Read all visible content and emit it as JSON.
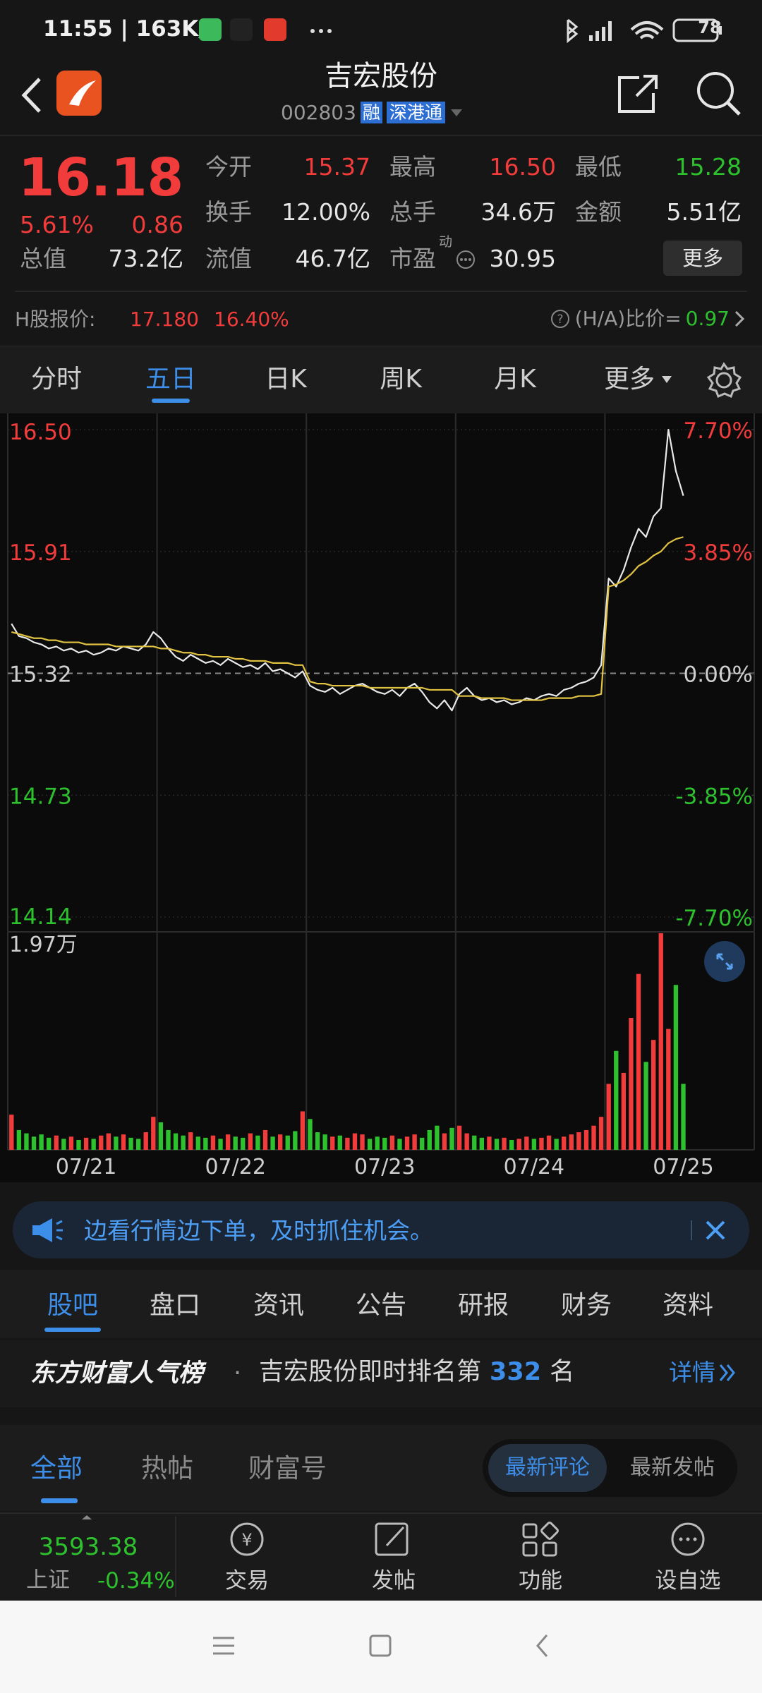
{
  "status_bar": {
    "time": "11:55 | 163K/s",
    "battery": "78"
  },
  "header": {
    "title": "吉宏股份",
    "code": "002803",
    "badges": [
      "融",
      "深港通"
    ]
  },
  "quote": {
    "price": "16.18",
    "change_pct": "5.61%",
    "change": "0.86",
    "stats": [
      {
        "label": "今开",
        "value": "15.37"
      },
      {
        "label": "最高",
        "value": "16.50"
      },
      {
        "label": "最低",
        "value": "15.28"
      },
      {
        "label": "换手",
        "value": "12.00%"
      },
      {
        "label": "总手",
        "value": "34.6万"
      },
      {
        "label": "金额",
        "value": "5.51亿"
      },
      {
        "label": "总值",
        "value": "73.2亿"
      },
      {
        "label": "流值",
        "value": "46.7亿"
      },
      {
        "label": "市盈",
        "sup": "动",
        "value": "30.95"
      }
    ],
    "more": "更多"
  },
  "h_share": {
    "label": "H股报价:",
    "price": "17.180",
    "pct": "16.40%",
    "ratio_label": "(H/A)比价=",
    "ratio": "0.97"
  },
  "period_tabs": [
    "分时",
    "五日",
    "日K",
    "周K",
    "月K",
    "更多"
  ],
  "chart_data": {
    "type": "line",
    "categories": [
      null,
      null,
      null,
      null,
      null,
      null,
      null,
      null,
      null,
      null,
      "07/21",
      null,
      null,
      null,
      null,
      null,
      null,
      null,
      null,
      null,
      null,
      null,
      null,
      null,
      null,
      null,
      null,
      null,
      null,
      null,
      "07/22",
      null,
      null,
      null,
      null,
      null,
      null,
      null,
      null,
      null,
      null,
      null,
      null,
      null,
      null,
      null,
      null,
      null,
      null,
      null,
      "07/23",
      null,
      null,
      null,
      null,
      null,
      null,
      null,
      null,
      null,
      null,
      null,
      null,
      null,
      null,
      null,
      null,
      null,
      null,
      null,
      "07/24",
      null,
      null,
      null,
      null,
      null,
      null,
      null,
      null,
      null,
      null,
      null,
      null,
      null,
      null,
      null,
      null,
      null,
      null,
      null,
      "07/25",
      null,
      null,
      null,
      null,
      null,
      null,
      null,
      null,
      null
    ],
    "ylim": [
      14.14,
      16.5
    ],
    "yticks": [
      {
        "value": 16.5,
        "label": "16.50"
      },
      15.91,
      15.32,
      14.73,
      14.14
    ],
    "y2lim": [
      -7.7,
      7.7
    ],
    "y2ticks": [
      {
        "value": 7.7,
        "label": "7.70%"
      },
      {
        "value": 3.85,
        "label": "3.85%"
      },
      {
        "value": 0,
        "label": "0.00%"
      },
      {
        "value": -3.85,
        "label": "-3.85%"
      },
      {
        "value": -7.7,
        "label": "-7.70%"
      }
    ],
    "y3lim": [
      0,
      19700
    ],
    "y3ticks": [
      {
        "value": 19700,
        "label": "1.97万"
      }
    ],
    "colors": {
      "up": "#f23c3c",
      "down": "#2ec12e",
      "flat": "#cfcfcf"
    },
    "series": [
      {
        "color": "#e9e9e9",
        "values": [
          15.56,
          15.5,
          15.49,
          15.47,
          15.46,
          15.44,
          15.45,
          15.43,
          15.44,
          15.42,
          15.43,
          15.41,
          15.42,
          15.44,
          15.43,
          15.45,
          15.44,
          15.43,
          15.46,
          15.52,
          15.49,
          15.44,
          15.4,
          15.38,
          15.41,
          15.39,
          15.37,
          15.38,
          15.36,
          15.39,
          15.37,
          15.35,
          15.36,
          15.34,
          15.37,
          15.33,
          15.34,
          15.32,
          15.3,
          15.33,
          15.26,
          15.24,
          15.23,
          15.25,
          15.22,
          15.24,
          15.26,
          15.27,
          15.25,
          15.23,
          15.22,
          15.24,
          15.21,
          15.25,
          15.27,
          15.23,
          15.18,
          15.15,
          15.19,
          15.14,
          15.22,
          15.25,
          15.21,
          15.19,
          15.2,
          15.18,
          15.19,
          15.17,
          15.18,
          15.2,
          15.19,
          15.21,
          15.22,
          15.21,
          15.24,
          15.25,
          15.27,
          15.28,
          15.3,
          15.36,
          15.78,
          15.74,
          15.82,
          15.93,
          16.02,
          15.98,
          16.08,
          16.12,
          16.5,
          16.3,
          16.18,
          null,
          null,
          null,
          null,
          null,
          null,
          null,
          null,
          null
        ]
      },
      {
        "color": "#e2c341",
        "values": [
          15.52,
          15.51,
          15.5,
          15.49,
          15.49,
          15.48,
          15.48,
          15.47,
          15.47,
          15.47,
          15.46,
          15.46,
          15.46,
          15.46,
          15.45,
          15.45,
          15.45,
          15.45,
          15.45,
          15.45,
          15.44,
          15.44,
          15.43,
          15.42,
          15.42,
          15.41,
          15.41,
          15.4,
          15.4,
          15.4,
          15.39,
          15.39,
          15.38,
          15.38,
          15.38,
          15.37,
          15.37,
          15.37,
          15.36,
          15.36,
          15.28,
          15.27,
          15.27,
          15.26,
          15.26,
          15.26,
          15.26,
          15.26,
          15.25,
          15.25,
          15.25,
          15.25,
          15.25,
          15.25,
          15.25,
          15.25,
          15.24,
          15.24,
          15.24,
          15.24,
          15.21,
          15.21,
          15.21,
          15.2,
          15.2,
          15.2,
          15.2,
          15.19,
          15.19,
          15.19,
          15.19,
          15.19,
          15.2,
          15.2,
          15.2,
          15.2,
          15.21,
          15.21,
          15.21,
          15.22,
          15.74,
          15.75,
          15.77,
          15.8,
          15.84,
          15.86,
          15.89,
          15.91,
          15.95,
          15.97,
          15.98,
          null,
          null,
          null,
          null,
          null,
          null,
          null,
          null,
          null
        ]
      },
      {
        "type": "bar",
        "axis": "y3",
        "color": "#f23c3c",
        "values": [
          3200,
          null,
          null,
          null,
          null,
          null,
          1300,
          null,
          1200,
          null,
          1100,
          null,
          1300,
          1500,
          null,
          1400,
          null,
          null,
          1600,
          3000,
          null,
          null,
          null,
          null,
          1600,
          null,
          null,
          1300,
          null,
          1400,
          null,
          null,
          1500,
          null,
          1800,
          null,
          1400,
          null,
          null,
          3500,
          null,
          null,
          null,
          1200,
          null,
          1100,
          1500,
          1400,
          null,
          null,
          null,
          1300,
          null,
          1200,
          1400,
          null,
          null,
          null,
          1500,
          null,
          2200,
          1500,
          null,
          null,
          1200,
          null,
          1100,
          null,
          1000,
          1200,
          null,
          1100,
          1300,
          null,
          1200,
          1400,
          1600,
          1800,
          2200,
          3000,
          6000,
          null,
          7000,
          12000,
          16000,
          null,
          10000,
          19700,
          11000,
          null,
          null,
          null,
          null,
          null,
          null,
          null,
          null,
          null,
          null,
          null
        ]
      },
      {
        "type": "bar",
        "axis": "y3",
        "color": "#2ec12e",
        "values": [
          null,
          1800,
          1500,
          1200,
          1400,
          1100,
          null,
          1000,
          null,
          900,
          null,
          1000,
          null,
          null,
          1200,
          null,
          1100,
          1000,
          null,
          null,
          2500,
          1800,
          1500,
          1300,
          null,
          1200,
          1100,
          null,
          1000,
          null,
          1200,
          1100,
          null,
          1300,
          null,
          1200,
          null,
          1300,
          1700,
          null,
          2800,
          1600,
          1400,
          null,
          1300,
          null,
          null,
          null,
          1000,
          1200,
          1100,
          null,
          1000,
          null,
          null,
          1100,
          1800,
          2200,
          null,
          2000,
          null,
          null,
          1300,
          1100,
          null,
          1000,
          null,
          900,
          null,
          null,
          1000,
          null,
          null,
          1000,
          null,
          null,
          null,
          null,
          null,
          null,
          null,
          9000,
          null,
          null,
          null,
          8000,
          null,
          null,
          null,
          15000,
          6000,
          null,
          null,
          null,
          null,
          null,
          null,
          null,
          null,
          null
        ]
      }
    ]
  },
  "banner": "边看行情边下单，及时抓住机会。",
  "section_tabs": [
    "股吧",
    "盘口",
    "资讯",
    "公告",
    "研报",
    "财务",
    "资料"
  ],
  "rank": {
    "brand": "东方财富人气榜",
    "text": "吉宏股份即时排名第",
    "rank": "332",
    "suffix": "名",
    "link": "详情"
  },
  "sub_tabs": [
    "全部",
    "热帖",
    "财富号"
  ],
  "sort_tabs": [
    "最新评论",
    "最新发帖"
  ],
  "bottom_nav": {
    "index_value": "3593.38",
    "index_name": "上证",
    "index_change": "-0.34%",
    "items": [
      "交易",
      "发帖",
      "功能",
      "设自选"
    ]
  }
}
